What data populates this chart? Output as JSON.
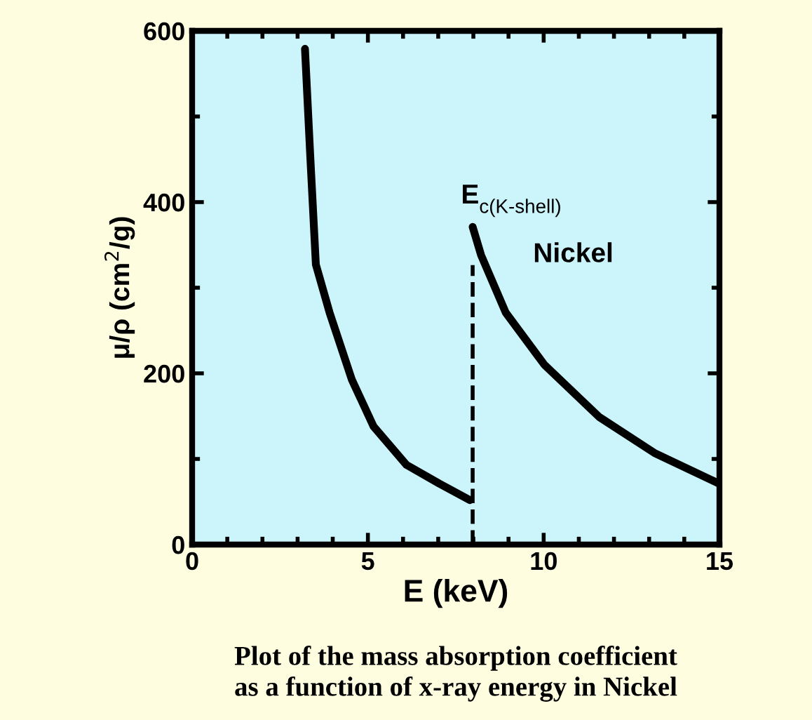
{
  "chart_data": {
    "type": "line",
    "xlabel": "E (keV)",
    "ylabel": "μ/ρ (cm$^{2}$/g)",
    "xlim": [
      0,
      15
    ],
    "ylim": [
      0,
      600
    ],
    "xticks": [
      0,
      5,
      10,
      15
    ],
    "yticks": [
      0,
      200,
      400,
      600
    ],
    "grid": false,
    "legend": false,
    "marker": "none",
    "line_style": "solid",
    "series": [
      {
        "color": "#000000",
        "x": [
          3.21,
          3.36,
          3.52,
          3.91,
          4.54,
          5.16,
          6.1,
          7.04,
          7.9
        ],
        "values": [
          579,
          454,
          327,
          271,
          193,
          138,
          93,
          71,
          52
        ]
      },
      {
        "color": "#000000",
        "x": [
          7.98,
          8.22,
          8.92,
          10.02,
          11.58,
          13.15,
          15
        ],
        "values": [
          371,
          338,
          271,
          210,
          149,
          107,
          71
        ]
      }
    ],
    "ref_lines": [
      {
        "axis": "x",
        "value": 7.98,
        "color": "#000000",
        "line_style": "dashed"
      }
    ],
    "annotations": [
      {
        "text": "E$_{c(K-shell)}$",
        "x": 7.98,
        "y": 371
      },
      "Nickel",
      "Plot of the mass absorption coefficient\nas a function of x-ray energy in Nickel"
    ]
  }
}
